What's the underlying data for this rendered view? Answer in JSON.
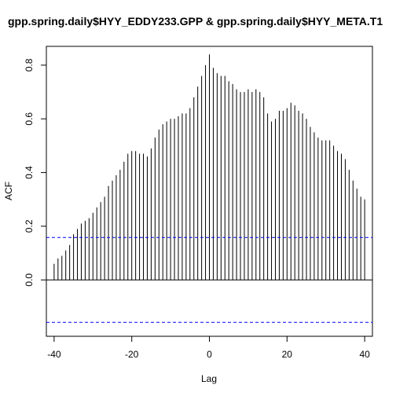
{
  "chart_data": {
    "type": "bar",
    "title": "gpp.spring.daily$HYY_EDDY233.GPP & gpp.spring.daily$HYY_META.T1",
    "xlabel": "Lag",
    "ylabel": "ACF",
    "xlim": [
      -42,
      42
    ],
    "ylim": [
      -0.21,
      0.87
    ],
    "x_ticks": [
      -40,
      -20,
      0,
      20,
      40
    ],
    "y_ticks": [
      0.0,
      0.2,
      0.4,
      0.6,
      0.8
    ],
    "x_tick_labels": [
      "-40",
      "-20",
      "0",
      "20",
      "40"
    ],
    "y_tick_labels": [
      "0.0",
      "0.2",
      "0.4",
      "0.6",
      "0.8"
    ],
    "confidence_bound": 0.158,
    "confidence_color": "#0000ff",
    "grid": false,
    "lags": [
      -40,
      -39,
      -38,
      -37,
      -36,
      -35,
      -34,
      -33,
      -32,
      -31,
      -30,
      -29,
      -28,
      -27,
      -26,
      -25,
      -24,
      -23,
      -22,
      -21,
      -20,
      -19,
      -18,
      -17,
      -16,
      -15,
      -14,
      -13,
      -12,
      -11,
      -10,
      -9,
      -8,
      -7,
      -6,
      -5,
      -4,
      -3,
      -2,
      -1,
      0,
      1,
      2,
      3,
      4,
      5,
      6,
      7,
      8,
      9,
      10,
      11,
      12,
      13,
      14,
      15,
      16,
      17,
      18,
      19,
      20,
      21,
      22,
      23,
      24,
      25,
      26,
      27,
      28,
      29,
      30,
      31,
      32,
      33,
      34,
      35,
      36,
      37,
      38,
      39,
      40
    ],
    "values": [
      0.06,
      0.08,
      0.09,
      0.11,
      0.13,
      0.17,
      0.19,
      0.21,
      0.22,
      0.23,
      0.25,
      0.27,
      0.29,
      0.31,
      0.35,
      0.37,
      0.39,
      0.41,
      0.44,
      0.47,
      0.48,
      0.48,
      0.47,
      0.47,
      0.46,
      0.49,
      0.53,
      0.56,
      0.58,
      0.59,
      0.6,
      0.6,
      0.61,
      0.62,
      0.62,
      0.64,
      0.68,
      0.72,
      0.76,
      0.8,
      0.84,
      0.79,
      0.77,
      0.76,
      0.76,
      0.74,
      0.73,
      0.71,
      0.7,
      0.7,
      0.71,
      0.7,
      0.71,
      0.7,
      0.68,
      0.62,
      0.59,
      0.6,
      0.63,
      0.63,
      0.64,
      0.66,
      0.65,
      0.63,
      0.62,
      0.6,
      0.57,
      0.55,
      0.53,
      0.52,
      0.52,
      0.52,
      0.5,
      0.48,
      0.47,
      0.45,
      0.41,
      0.37,
      0.34,
      0.31,
      0.3
    ]
  }
}
